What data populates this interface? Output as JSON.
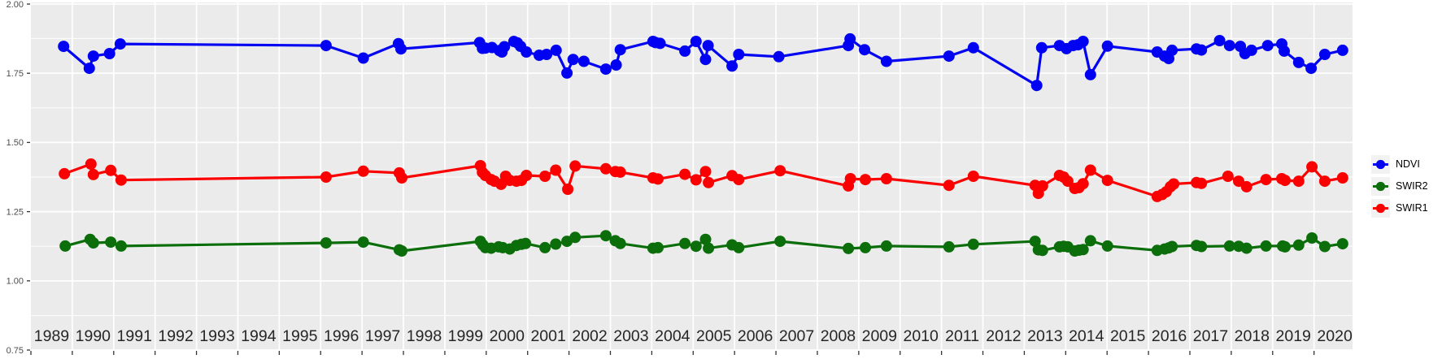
{
  "figure": {
    "kind": "time-series scatter/line plot",
    "background": "#ffffff",
    "panel_background": "#EBEBEB",
    "gridline_color": "#FFFFFF",
    "tick_color": "#333333",
    "y_tick_label_color": "#4d4d4d",
    "x_tick_label_color": "#262626"
  },
  "y_axis": {
    "labels": [
      "2.00",
      "1.75",
      "1.50",
      "1.25",
      "1.00",
      "0.75"
    ],
    "values": [
      2.0,
      1.75,
      1.5,
      1.25,
      1.0,
      0.75
    ]
  },
  "x_axis": {
    "labels": [
      "1989",
      "1990",
      "1991",
      "1992",
      "1993",
      "1994",
      "1995",
      "1996",
      "1997",
      "1998",
      "1999",
      "2000",
      "2001",
      "2002",
      "2003",
      "2004",
      "2005",
      "2006",
      "2007",
      "2008",
      "2009",
      "2010",
      "2011",
      "2012",
      "2013",
      "2014",
      "2015",
      "2016",
      "2017",
      "2018",
      "2019",
      "2020"
    ]
  },
  "legend": {
    "items": [
      {
        "label": "NDVI",
        "color": "#0202f2"
      },
      {
        "label": "SWIR2",
        "color": "#0b6e0b"
      },
      {
        "label": "SWIR1",
        "color": "#fb0000"
      }
    ],
    "key_background": "#F2F2F2"
  },
  "chart_data": {
    "type": "line",
    "title": "",
    "xlabel": "",
    "ylabel": "",
    "x_unit": "decimal year",
    "xlim": [
      1989.0,
      2020.93
    ],
    "ylim": [
      0.75,
      2.0
    ],
    "y_major_step": 0.25,
    "y_minor_step": 0.125,
    "x_grid_step_years": 1,
    "grid": "white on grey panel, major + minor horizontal, yearly vertical",
    "legend_position": "right",
    "series": [
      {
        "name": "NDVI",
        "color": "#0202f2",
        "points": [
          [
            1989.79,
            1.847
          ],
          [
            1990.41,
            1.768
          ],
          [
            1990.51,
            1.812
          ],
          [
            1990.9,
            1.821
          ],
          [
            1991.16,
            1.856
          ],
          [
            1996.13,
            1.85
          ],
          [
            1997.03,
            1.805
          ],
          [
            1997.88,
            1.857
          ],
          [
            1997.94,
            1.838
          ],
          [
            1999.84,
            1.861
          ],
          [
            1999.91,
            1.84
          ],
          [
            1999.98,
            1.841
          ],
          [
            2000.14,
            1.843
          ],
          [
            2000.32,
            1.832
          ],
          [
            2000.38,
            1.827
          ],
          [
            2000.44,
            1.846
          ],
          [
            2000.67,
            1.865
          ],
          [
            2000.75,
            1.86
          ],
          [
            2000.83,
            1.847
          ],
          [
            2000.97,
            1.827
          ],
          [
            2001.28,
            1.815
          ],
          [
            2001.46,
            1.818
          ],
          [
            2001.69,
            1.833
          ],
          [
            2001.95,
            1.751
          ],
          [
            2002.1,
            1.8
          ],
          [
            2002.36,
            1.793
          ],
          [
            2002.89,
            1.765
          ],
          [
            2003.14,
            1.78
          ],
          [
            2003.24,
            1.835
          ],
          [
            2004.03,
            1.865
          ],
          [
            2004.09,
            1.861
          ],
          [
            2004.2,
            1.858
          ],
          [
            2004.8,
            1.83
          ],
          [
            2005.07,
            1.865
          ],
          [
            2005.3,
            1.8
          ],
          [
            2005.36,
            1.85
          ],
          [
            2005.94,
            1.776
          ],
          [
            2006.1,
            1.818
          ],
          [
            2007.07,
            1.81
          ],
          [
            2008.75,
            1.85
          ],
          [
            2008.79,
            1.874
          ],
          [
            2009.14,
            1.835
          ],
          [
            2009.67,
            1.793
          ],
          [
            2011.18,
            1.812
          ],
          [
            2011.77,
            1.842
          ],
          [
            2013.3,
            1.706
          ],
          [
            2013.42,
            1.842
          ],
          [
            2013.85,
            1.85
          ],
          [
            2014.02,
            1.839
          ],
          [
            2014.18,
            1.85
          ],
          [
            2014.3,
            1.853
          ],
          [
            2014.42,
            1.865
          ],
          [
            2014.6,
            1.745
          ],
          [
            2015.01,
            1.848
          ],
          [
            2016.21,
            1.827
          ],
          [
            2016.39,
            1.812
          ],
          [
            2016.49,
            1.803
          ],
          [
            2016.57,
            1.833
          ],
          [
            2017.16,
            1.838
          ],
          [
            2017.28,
            1.834
          ],
          [
            2017.72,
            1.868
          ],
          [
            2017.96,
            1.85
          ],
          [
            2018.22,
            1.847
          ],
          [
            2018.33,
            1.821
          ],
          [
            2018.49,
            1.833
          ],
          [
            2018.88,
            1.85
          ],
          [
            2019.22,
            1.856
          ],
          [
            2019.28,
            1.83
          ],
          [
            2019.63,
            1.789
          ],
          [
            2019.93,
            1.768
          ],
          [
            2020.26,
            1.818
          ],
          [
            2020.69,
            1.833
          ]
        ]
      },
      {
        "name": "SWIR2",
        "color": "#0b6e0b",
        "points": [
          [
            1989.83,
            1.126
          ],
          [
            1990.43,
            1.15
          ],
          [
            1990.51,
            1.137
          ],
          [
            1990.93,
            1.14
          ],
          [
            1991.18,
            1.126
          ],
          [
            1996.13,
            1.137
          ],
          [
            1997.03,
            1.14
          ],
          [
            1997.9,
            1.112
          ],
          [
            1997.96,
            1.108
          ],
          [
            1999.86,
            1.143
          ],
          [
            1999.92,
            1.13
          ],
          [
            1999.98,
            1.12
          ],
          [
            2000.12,
            1.118
          ],
          [
            2000.3,
            1.123
          ],
          [
            2000.4,
            1.12
          ],
          [
            2000.57,
            1.115
          ],
          [
            2000.73,
            1.128
          ],
          [
            2000.85,
            1.132
          ],
          [
            2000.95,
            1.135
          ],
          [
            2001.42,
            1.12
          ],
          [
            2001.68,
            1.133
          ],
          [
            2001.95,
            1.143
          ],
          [
            2002.15,
            1.157
          ],
          [
            2002.89,
            1.163
          ],
          [
            2003.12,
            1.145
          ],
          [
            2003.24,
            1.135
          ],
          [
            2004.03,
            1.118
          ],
          [
            2004.15,
            1.12
          ],
          [
            2004.8,
            1.135
          ],
          [
            2005.07,
            1.125
          ],
          [
            2005.3,
            1.15
          ],
          [
            2005.37,
            1.118
          ],
          [
            2005.94,
            1.13
          ],
          [
            2006.1,
            1.12
          ],
          [
            2007.1,
            1.143
          ],
          [
            2008.75,
            1.117
          ],
          [
            2009.16,
            1.12
          ],
          [
            2009.67,
            1.126
          ],
          [
            2011.18,
            1.123
          ],
          [
            2011.77,
            1.132
          ],
          [
            2013.26,
            1.143
          ],
          [
            2013.34,
            1.112
          ],
          [
            2013.44,
            1.11
          ],
          [
            2013.85,
            1.123
          ],
          [
            2013.95,
            1.125
          ],
          [
            2014.05,
            1.123
          ],
          [
            2014.22,
            1.108
          ],
          [
            2014.32,
            1.111
          ],
          [
            2014.42,
            1.113
          ],
          [
            2014.6,
            1.145
          ],
          [
            2015.01,
            1.126
          ],
          [
            2016.21,
            1.11
          ],
          [
            2016.39,
            1.115
          ],
          [
            2016.49,
            1.119
          ],
          [
            2016.57,
            1.124
          ],
          [
            2017.16,
            1.128
          ],
          [
            2017.28,
            1.124
          ],
          [
            2017.96,
            1.126
          ],
          [
            2018.18,
            1.125
          ],
          [
            2018.37,
            1.118
          ],
          [
            2018.84,
            1.126
          ],
          [
            2019.24,
            1.126
          ],
          [
            2019.3,
            1.123
          ],
          [
            2019.63,
            1.129
          ],
          [
            2019.95,
            1.155
          ],
          [
            2020.26,
            1.124
          ],
          [
            2020.69,
            1.134
          ]
        ]
      },
      {
        "name": "SWIR1",
        "color": "#fb0000",
        "points": [
          [
            1989.81,
            1.387
          ],
          [
            1990.45,
            1.422
          ],
          [
            1990.51,
            1.384
          ],
          [
            1990.93,
            1.399
          ],
          [
            1991.18,
            1.364
          ],
          [
            1996.13,
            1.375
          ],
          [
            1997.03,
            1.396
          ],
          [
            1997.9,
            1.39
          ],
          [
            1997.96,
            1.372
          ],
          [
            1999.86,
            1.416
          ],
          [
            1999.91,
            1.392
          ],
          [
            1999.98,
            1.381
          ],
          [
            2000.12,
            1.366
          ],
          [
            2000.2,
            1.36
          ],
          [
            2000.36,
            1.349
          ],
          [
            2000.47,
            1.378
          ],
          [
            2000.57,
            1.363
          ],
          [
            2000.73,
            1.36
          ],
          [
            2000.85,
            1.363
          ],
          [
            2000.97,
            1.381
          ],
          [
            2001.42,
            1.378
          ],
          [
            2001.68,
            1.4
          ],
          [
            2001.97,
            1.331
          ],
          [
            2002.15,
            1.415
          ],
          [
            2002.89,
            1.405
          ],
          [
            2003.12,
            1.395
          ],
          [
            2003.24,
            1.393
          ],
          [
            2004.03,
            1.372
          ],
          [
            2004.15,
            1.368
          ],
          [
            2004.8,
            1.385
          ],
          [
            2005.07,
            1.365
          ],
          [
            2005.3,
            1.395
          ],
          [
            2005.37,
            1.355
          ],
          [
            2005.94,
            1.38
          ],
          [
            2006.1,
            1.366
          ],
          [
            2007.1,
            1.398
          ],
          [
            2008.75,
            1.343
          ],
          [
            2008.8,
            1.369
          ],
          [
            2009.16,
            1.366
          ],
          [
            2009.67,
            1.369
          ],
          [
            2011.18,
            1.345
          ],
          [
            2011.77,
            1.378
          ],
          [
            2013.26,
            1.345
          ],
          [
            2013.34,
            1.316
          ],
          [
            2013.44,
            1.343
          ],
          [
            2013.85,
            1.381
          ],
          [
            2013.95,
            1.375
          ],
          [
            2014.05,
            1.36
          ],
          [
            2014.22,
            1.334
          ],
          [
            2014.32,
            1.337
          ],
          [
            2014.42,
            1.351
          ],
          [
            2014.6,
            1.4
          ],
          [
            2015.01,
            1.363
          ],
          [
            2016.21,
            1.305
          ],
          [
            2016.33,
            1.312
          ],
          [
            2016.43,
            1.322
          ],
          [
            2016.53,
            1.34
          ],
          [
            2016.61,
            1.35
          ],
          [
            2017.16,
            1.355
          ],
          [
            2017.28,
            1.352
          ],
          [
            2017.92,
            1.378
          ],
          [
            2018.18,
            1.36
          ],
          [
            2018.37,
            1.34
          ],
          [
            2018.84,
            1.366
          ],
          [
            2019.22,
            1.369
          ],
          [
            2019.3,
            1.363
          ],
          [
            2019.63,
            1.36
          ],
          [
            2019.95,
            1.412
          ],
          [
            2020.26,
            1.36
          ],
          [
            2020.69,
            1.372
          ]
        ]
      }
    ]
  }
}
